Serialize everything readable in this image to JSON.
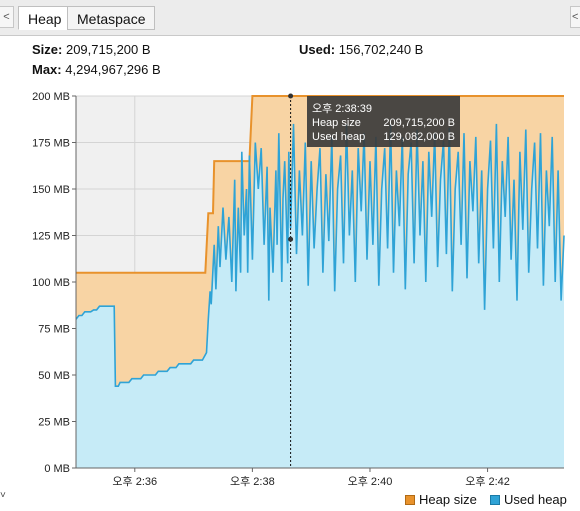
{
  "tabs": [
    {
      "label": "Heap",
      "active": true
    },
    {
      "label": "Metaspace",
      "active": false
    }
  ],
  "tabbar": {
    "left_stub": "<",
    "right_stub": "<"
  },
  "stats": {
    "size_label": "Size:",
    "size_value": "209,715,200 B",
    "used_label": "Used:",
    "used_value": "156,702,240 B",
    "max_label": "Max:",
    "max_value": "4,294,967,296 B"
  },
  "tooltip": {
    "time": "오후 2:38:39",
    "heap_label": "Heap size",
    "heap_value": "209,715,200 B",
    "used_label": "Used heap",
    "used_value": "129,082,000 B"
  },
  "legend": [
    {
      "label": "Heap size",
      "color": "#e8922c"
    },
    {
      "label": "Used heap",
      "color": "#2fa3d6"
    }
  ],
  "colors": {
    "heap": "#e8922c",
    "heap_fill": "#f8d4a4",
    "used": "#2fa3d6",
    "used_fill": "#c6ebf7"
  },
  "chart_data": {
    "type": "area",
    "yticks": [
      "0 MB",
      "25 MB",
      "50 MB",
      "75 MB",
      "100 MB",
      "125 MB",
      "150 MB",
      "175 MB",
      "200 MB"
    ],
    "ylim": [
      0,
      200
    ],
    "xlim": [
      35.0,
      43.3
    ],
    "xticks": [
      {
        "v": 36,
        "label": "오후 2:36"
      },
      {
        "v": 38,
        "label": "오후 2:38"
      },
      {
        "v": 40,
        "label": "오후 2:40"
      },
      {
        "v": 42,
        "label": "오후 2:42"
      }
    ],
    "cursor_x": 38.65,
    "series": [
      {
        "name": "Heap size",
        "points": [
          [
            35.0,
            105
          ],
          [
            37.2,
            105
          ],
          [
            37.25,
            137
          ],
          [
            37.33,
            137
          ],
          [
            37.35,
            165
          ],
          [
            37.95,
            165
          ],
          [
            38.0,
            200
          ],
          [
            43.3,
            200
          ]
        ]
      },
      {
        "name": "Used heap",
        "points": [
          [
            35.0,
            80
          ],
          [
            35.05,
            82
          ],
          [
            35.1,
            82
          ],
          [
            35.15,
            84
          ],
          [
            35.25,
            84
          ],
          [
            35.3,
            85
          ],
          [
            35.35,
            85
          ],
          [
            35.4,
            87
          ],
          [
            35.65,
            87
          ],
          [
            35.67,
            44
          ],
          [
            35.72,
            44
          ],
          [
            35.75,
            46
          ],
          [
            35.9,
            46
          ],
          [
            35.95,
            48
          ],
          [
            36.1,
            48
          ],
          [
            36.15,
            50
          ],
          [
            36.35,
            50
          ],
          [
            36.4,
            52
          ],
          [
            36.55,
            52
          ],
          [
            36.6,
            54
          ],
          [
            36.7,
            54
          ],
          [
            36.75,
            56
          ],
          [
            36.95,
            56
          ],
          [
            37.0,
            58
          ],
          [
            37.15,
            58
          ],
          [
            37.22,
            62
          ],
          [
            37.25,
            80
          ],
          [
            37.28,
            95
          ],
          [
            37.3,
            88
          ],
          [
            37.35,
            120
          ],
          [
            37.38,
            96
          ],
          [
            37.42,
            130
          ],
          [
            37.45,
            108
          ],
          [
            37.5,
            140
          ],
          [
            37.55,
            112
          ],
          [
            37.6,
            135
          ],
          [
            37.65,
            100
          ],
          [
            37.7,
            155
          ],
          [
            37.72,
            95
          ],
          [
            37.76,
            140
          ],
          [
            37.8,
            105
          ],
          [
            37.82,
            170
          ],
          [
            37.86,
            125
          ],
          [
            37.9,
            150
          ],
          [
            37.92,
            105
          ],
          [
            37.95,
            168
          ],
          [
            38.0,
            112
          ],
          [
            38.05,
            175
          ],
          [
            38.1,
            150
          ],
          [
            38.15,
            172
          ],
          [
            38.2,
            120
          ],
          [
            38.25,
            162
          ],
          [
            38.28,
            90
          ],
          [
            38.3,
            140
          ],
          [
            38.35,
            105
          ],
          [
            38.4,
            160
          ],
          [
            38.42,
            120
          ],
          [
            38.45,
            180
          ],
          [
            38.5,
            100
          ],
          [
            38.52,
            145
          ],
          [
            38.55,
            165
          ],
          [
            38.6,
            110
          ],
          [
            38.62,
            170
          ],
          [
            38.65,
            129
          ],
          [
            38.7,
            185
          ],
          [
            38.75,
            115
          ],
          [
            38.8,
            160
          ],
          [
            38.85,
            125
          ],
          [
            38.9,
            175
          ],
          [
            38.95,
            98
          ],
          [
            39.0,
            165
          ],
          [
            39.05,
            118
          ],
          [
            39.1,
            150
          ],
          [
            39.15,
            172
          ],
          [
            39.2,
            105
          ],
          [
            39.25,
            158
          ],
          [
            39.3,
            122
          ],
          [
            39.35,
            178
          ],
          [
            39.4,
            95
          ],
          [
            39.45,
            150
          ],
          [
            39.5,
            168
          ],
          [
            39.55,
            110
          ],
          [
            39.6,
            185
          ],
          [
            39.65,
            125
          ],
          [
            39.7,
            160
          ],
          [
            39.75,
            100
          ],
          [
            39.8,
            172
          ],
          [
            39.85,
            138
          ],
          [
            39.9,
            180
          ],
          [
            39.95,
            112
          ],
          [
            40.0,
            165
          ],
          [
            40.05,
            120
          ],
          [
            40.1,
            178
          ],
          [
            40.15,
            98
          ],
          [
            40.2,
            150
          ],
          [
            40.25,
            172
          ],
          [
            40.3,
            118
          ],
          [
            40.35,
            185
          ],
          [
            40.4,
            105
          ],
          [
            40.45,
            160
          ],
          [
            40.5,
            130
          ],
          [
            40.55,
            178
          ],
          [
            40.6,
            96
          ],
          [
            40.65,
            158
          ],
          [
            40.7,
            175
          ],
          [
            40.75,
            110
          ],
          [
            40.8,
            182
          ],
          [
            40.85,
            125
          ],
          [
            40.9,
            165
          ],
          [
            40.95,
            100
          ],
          [
            41.0,
            170
          ],
          [
            41.05,
            135
          ],
          [
            41.1,
            180
          ],
          [
            41.15,
            108
          ],
          [
            41.2,
            155
          ],
          [
            41.25,
            176
          ],
          [
            41.3,
            115
          ],
          [
            41.35,
            183
          ],
          [
            41.4,
            95
          ],
          [
            41.45,
            150
          ],
          [
            41.5,
            170
          ],
          [
            41.55,
            120
          ],
          [
            41.6,
            180
          ],
          [
            41.65,
            102
          ],
          [
            41.7,
            165
          ],
          [
            41.75,
            138
          ],
          [
            41.8,
            178
          ],
          [
            41.85,
            110
          ],
          [
            41.9,
            160
          ],
          [
            41.95,
            85
          ],
          [
            42.0,
            150
          ],
          [
            42.05,
            176
          ],
          [
            42.1,
            118
          ],
          [
            42.15,
            185
          ],
          [
            42.2,
            100
          ],
          [
            42.25,
            165
          ],
          [
            42.3,
            135
          ],
          [
            42.35,
            178
          ],
          [
            42.4,
            112
          ],
          [
            42.45,
            155
          ],
          [
            42.5,
            90
          ],
          [
            42.55,
            170
          ],
          [
            42.6,
            128
          ],
          [
            42.65,
            182
          ],
          [
            42.7,
            105
          ],
          [
            42.75,
            150
          ],
          [
            42.8,
            175
          ],
          [
            42.85,
            118
          ],
          [
            42.9,
            180
          ],
          [
            42.95,
            98
          ],
          [
            43.0,
            160
          ],
          [
            43.05,
            130
          ],
          [
            43.1,
            178
          ],
          [
            43.15,
            100
          ],
          [
            43.2,
            160
          ],
          [
            43.25,
            90
          ],
          [
            43.3,
            125
          ]
        ]
      }
    ]
  }
}
